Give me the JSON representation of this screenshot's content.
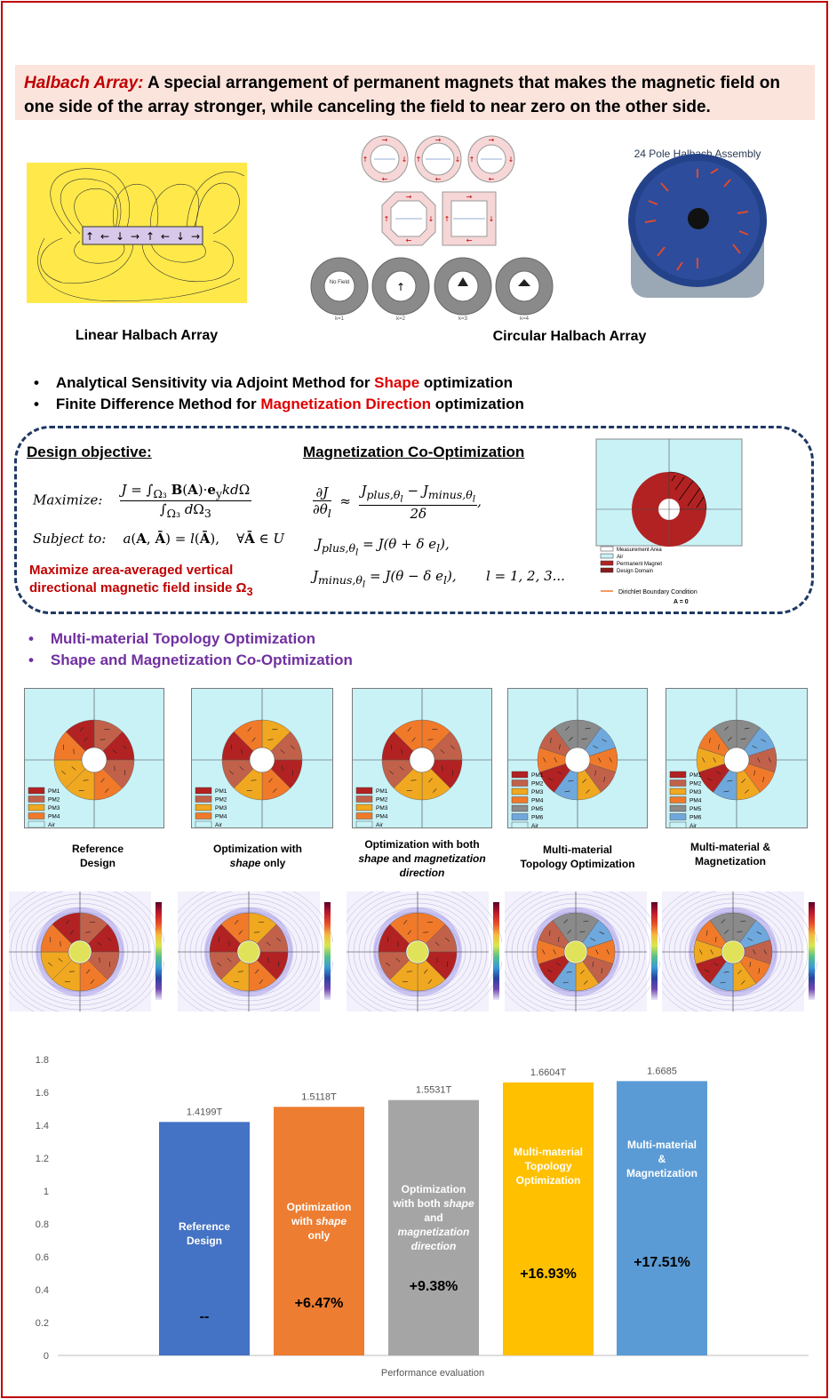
{
  "banner": {
    "term": "Halbach Array:",
    "text": " A special arrangement of permanent magnets that makes the magnetic field on one side of the array stronger, while canceling the field to near zero on the other side."
  },
  "figures": {
    "linear_caption": "Linear Halbach Array",
    "circular_caption": "Circular Halbach Array",
    "assembly_title": "24 Pole Halbach Assembly",
    "no_field": "No Field",
    "k_labels": [
      "k=1",
      "k=2",
      "k=3",
      "k=4"
    ]
  },
  "methods": {
    "line1_pre": "Analytical Sensitivity via Adjoint Method for ",
    "line1_hl": "Shape",
    "line1_post": " optimization",
    "line2_pre": "Finite Difference Method for ",
    "line2_hl": "Magnetization Direction",
    "line2_post": " optimization"
  },
  "formulation": {
    "objective_title": "Design objective:",
    "coopt_title": "Magnetization Co-Optimization",
    "maximize_label": "Maximize:",
    "subject_label": "Subject to:",
    "note_line1": "Maximize area-averaged vertical",
    "note_line2": "directional magnetic field inside Ω",
    "note_sub": "3",
    "legend": [
      "Measurement Area",
      "Air",
      "Permanent Magnet",
      "Design Domain"
    ],
    "dirichlet": "Dirichlet Boundary Condition",
    "dirichlet_eq": "A = 0"
  },
  "topics": {
    "item1": "Multi-material Topology Optimization",
    "item2": "Shape and Magnetization Co-Optimization"
  },
  "designs": [
    {
      "label_html": "Reference<br>Design",
      "legend": [
        "PM1",
        "PM2",
        "PM3",
        "PM4",
        "Air"
      ]
    },
    {
      "label_html": "Optimization with<br><i>shape</i> only",
      "legend": [
        "PM1",
        "PM2",
        "PM3",
        "PM4",
        "Air"
      ]
    },
    {
      "label_html": "Optimization with both<br><i>shape</i> and <i>magnetization</i><br><i>direction</i>",
      "legend": [
        "PM1",
        "PM2",
        "PM3",
        "PM4",
        "Air"
      ]
    },
    {
      "label_html": "Multi-material<br>Topology Optimization",
      "legend": [
        "PM1",
        "PM2",
        "PM3",
        "PM4",
        "PM5",
        "PM6",
        "Air"
      ]
    },
    {
      "label_html": "Multi-material &amp;<br>Magnetization",
      "legend": [
        "PM1",
        "PM2",
        "PM3",
        "PM4",
        "PM5",
        "PM6",
        "Air"
      ]
    }
  ],
  "colors": {
    "PM1": "#b22222",
    "PM2": "#c2614a",
    "PM3": "#f0a820",
    "PM4": "#f07a2a",
    "PM5": "#8a8a8a",
    "PM6": "#6fa8dc",
    "Air": "#c9f2f7"
  },
  "chart_data": {
    "type": "bar",
    "xlabel": "Performance evaluation",
    "ylim": [
      0,
      1.8
    ],
    "yticks": [
      "0",
      "0.2",
      "0.4",
      "0.6",
      "0.8",
      "1",
      "1.2",
      "1.4",
      "1.6",
      "1.8"
    ],
    "categories": [
      "Reference Design",
      "Optimization with shape only",
      "Optimization with both shape and magnetization direction",
      "Multi-material Topology Optimization",
      "Multi-material & Magnetization"
    ],
    "category_labels_html": [
      "Reference<br>Design",
      "Optimization<br>with <i>shape</i><br>only",
      "Optimization<br>with both <i>shape</i><br>and<br><i>magnetization</i><br><i>direction</i>",
      "Multi-material<br>Topology<br>Optimization",
      "Multi-material<br>&amp;<br>Magnetization"
    ],
    "values": [
      1.4199,
      1.5118,
      1.5531,
      1.6604,
      1.6685
    ],
    "value_labels": [
      "1.4199T",
      "1.5118T",
      "1.5531T",
      "1.6604T",
      "1.6685"
    ],
    "improvements": [
      "--",
      "+6.47%",
      "+9.38%",
      "+16.93%",
      "+17.51%"
    ],
    "bar_colors": [
      "#4472c4",
      "#ed7d31",
      "#a5a5a5",
      "#ffc000",
      "#5b9bd5"
    ],
    "grid": false
  }
}
